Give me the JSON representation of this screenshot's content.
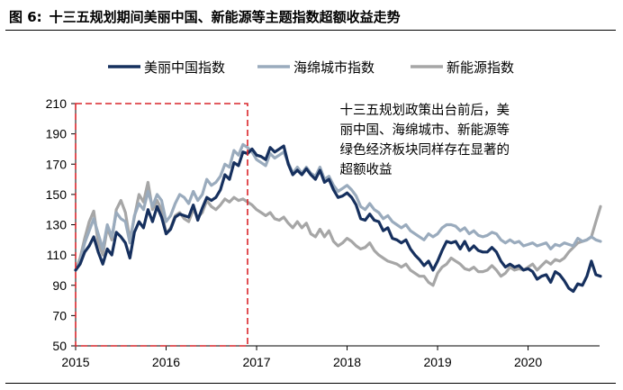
{
  "figure": {
    "label": "图 6:",
    "title": "十三五规划期间美丽中国、新能源等主题指数超额收益走势"
  },
  "chart_data": {
    "type": "line",
    "title": "十三五规划期间美丽中国、新能源等主题指数超额收益走势",
    "xlabel": "",
    "ylabel": "",
    "xlim": [
      2015.0,
      2020.85
    ],
    "ylim": [
      50,
      210
    ],
    "y_ticks": [
      50,
      70,
      90,
      110,
      130,
      150,
      170,
      190,
      210
    ],
    "x_ticks": [
      2015,
      2016,
      2017,
      2018,
      2019,
      2020
    ],
    "x_tick_labels": [
      "2015",
      "2016",
      "2017",
      "2018",
      "2019",
      "2020"
    ],
    "legend_position": "top",
    "highlight_period": {
      "x_start": 2015.0,
      "x_end": 2016.9,
      "y_start": 50,
      "y_end": 210,
      "style": "dashed-red-box"
    },
    "annotation": {
      "lines": [
        "十三五规划政策出台前后，美",
        "丽中国、海绵城市、新能源等",
        "绿色经济板块同样存在显著的",
        "超额收益"
      ],
      "x": 2017.92,
      "y": 203
    },
    "series": [
      {
        "name": "美丽中国指数",
        "color": "#16305e",
        "width": 3.2,
        "x": [
          2015.0,
          2015.05,
          2015.1,
          2015.15,
          2015.2,
          2015.25,
          2015.3,
          2015.35,
          2015.4,
          2015.45,
          2015.5,
          2015.55,
          2015.6,
          2015.65,
          2015.7,
          2015.75,
          2015.8,
          2015.85,
          2015.9,
          2015.95,
          2016.0,
          2016.05,
          2016.1,
          2016.15,
          2016.2,
          2016.25,
          2016.3,
          2016.35,
          2016.4,
          2016.45,
          2016.5,
          2016.55,
          2016.6,
          2016.65,
          2016.7,
          2016.75,
          2016.8,
          2016.85,
          2016.9,
          2016.95,
          2017.0,
          2017.05,
          2017.1,
          2017.15,
          2017.2,
          2017.25,
          2017.3,
          2017.35,
          2017.4,
          2017.45,
          2017.5,
          2017.55,
          2017.6,
          2017.65,
          2017.7,
          2017.75,
          2017.8,
          2017.85,
          2017.9,
          2017.95,
          2018.0,
          2018.05,
          2018.1,
          2018.15,
          2018.2,
          2018.25,
          2018.3,
          2018.35,
          2018.4,
          2018.45,
          2018.5,
          2018.55,
          2018.6,
          2018.65,
          2018.7,
          2018.75,
          2018.8,
          2018.85,
          2018.9,
          2018.95,
          2019.0,
          2019.05,
          2019.1,
          2019.15,
          2019.2,
          2019.25,
          2019.3,
          2019.35,
          2019.4,
          2019.45,
          2019.5,
          2019.55,
          2019.6,
          2019.65,
          2019.7,
          2019.75,
          2019.8,
          2019.85,
          2019.9,
          2019.95,
          2020.0,
          2020.05,
          2020.1,
          2020.15,
          2020.2,
          2020.25,
          2020.3,
          2020.35,
          2020.4,
          2020.45,
          2020.5,
          2020.55,
          2020.6,
          2020.65,
          2020.7,
          2020.75,
          2020.8
        ],
        "values": [
          100,
          104,
          112,
          116,
          122,
          112,
          104,
          114,
          110,
          125,
          122,
          118,
          108,
          125,
          132,
          128,
          140,
          132,
          142,
          135,
          124,
          127,
          135,
          137,
          136,
          135,
          143,
          133,
          141,
          148,
          146,
          148,
          153,
          163,
          160,
          171,
          169,
          178,
          177,
          180,
          176,
          175,
          173,
          181,
          178,
          180,
          182,
          170,
          163,
          166,
          163,
          167,
          163,
          160,
          166,
          158,
          160,
          153,
          148,
          149,
          151,
          148,
          143,
          134,
          133,
          137,
          133,
          132,
          126,
          128,
          121,
          120,
          118,
          120,
          114,
          110,
          107,
          103,
          106,
          100,
          106,
          113,
          119,
          118,
          119,
          114,
          119,
          113,
          116,
          113,
          112,
          112,
          115,
          112,
          106,
          102,
          104,
          102,
          103,
          100,
          101,
          99,
          94,
          96,
          97,
          92,
          99,
          97,
          93,
          88,
          86,
          91,
          90,
          96,
          106,
          97,
          96
        ]
      },
      {
        "name": "海绵城市指数",
        "color": "#9aabbd",
        "width": 3.2,
        "x": [
          2015.0,
          2015.05,
          2015.1,
          2015.15,
          2015.2,
          2015.25,
          2015.3,
          2015.35,
          2015.4,
          2015.45,
          2015.5,
          2015.55,
          2015.6,
          2015.65,
          2015.7,
          2015.75,
          2015.8,
          2015.85,
          2015.9,
          2015.95,
          2016.0,
          2016.05,
          2016.1,
          2016.15,
          2016.2,
          2016.25,
          2016.3,
          2016.35,
          2016.4,
          2016.45,
          2016.5,
          2016.55,
          2016.6,
          2016.65,
          2016.7,
          2016.75,
          2016.8,
          2016.85,
          2016.9,
          2016.95,
          2017.0,
          2017.05,
          2017.1,
          2017.15,
          2017.2,
          2017.25,
          2017.3,
          2017.35,
          2017.4,
          2017.45,
          2017.5,
          2017.55,
          2017.6,
          2017.65,
          2017.7,
          2017.75,
          2017.8,
          2017.85,
          2017.9,
          2017.95,
          2018.0,
          2018.05,
          2018.1,
          2018.15,
          2018.2,
          2018.25,
          2018.3,
          2018.35,
          2018.4,
          2018.45,
          2018.5,
          2018.55,
          2018.6,
          2018.65,
          2018.7,
          2018.75,
          2018.8,
          2018.85,
          2018.9,
          2018.95,
          2019.0,
          2019.05,
          2019.1,
          2019.15,
          2019.2,
          2019.25,
          2019.3,
          2019.35,
          2019.4,
          2019.45,
          2019.5,
          2019.55,
          2019.6,
          2019.65,
          2019.7,
          2019.75,
          2019.8,
          2019.85,
          2019.9,
          2019.95,
          2020.0,
          2020.05,
          2020.1,
          2020.15,
          2020.2,
          2020.25,
          2020.3,
          2020.35,
          2020.4,
          2020.45,
          2020.5,
          2020.55,
          2020.6,
          2020.65,
          2020.7,
          2020.75,
          2020.8
        ],
        "values": [
          100,
          106,
          118,
          126,
          134,
          124,
          114,
          130,
          122,
          138,
          134,
          132,
          118,
          136,
          144,
          140,
          152,
          142,
          150,
          146,
          132,
          136,
          144,
          150,
          148,
          144,
          152,
          146,
          150,
          160,
          156,
          158,
          162,
          170,
          168,
          179,
          176,
          183,
          181,
          178,
          173,
          171,
          169,
          177,
          174,
          176,
          178,
          171,
          164,
          168,
          164,
          168,
          164,
          162,
          168,
          160,
          162,
          156,
          152,
          154,
          156,
          153,
          149,
          142,
          140,
          144,
          140,
          138,
          134,
          136,
          132,
          130,
          128,
          130,
          126,
          124,
          122,
          120,
          124,
          122,
          124,
          128,
          130,
          130,
          129,
          126,
          128,
          124,
          126,
          123,
          122,
          123,
          125,
          124,
          120,
          118,
          120,
          118,
          119,
          116,
          117,
          118,
          116,
          117,
          118,
          114,
          117,
          116,
          118,
          117,
          116,
          121,
          119,
          120,
          122,
          120,
          119
        ]
      },
      {
        "name": "新能源指数",
        "color": "#a6a6a6",
        "width": 3.2,
        "x": [
          2015.0,
          2015.05,
          2015.1,
          2015.15,
          2015.2,
          2015.25,
          2015.3,
          2015.35,
          2015.4,
          2015.45,
          2015.5,
          2015.55,
          2015.6,
          2015.65,
          2015.7,
          2015.75,
          2015.8,
          2015.85,
          2015.9,
          2015.95,
          2016.0,
          2016.05,
          2016.1,
          2016.15,
          2016.2,
          2016.25,
          2016.3,
          2016.35,
          2016.4,
          2016.45,
          2016.5,
          2016.55,
          2016.6,
          2016.65,
          2016.7,
          2016.75,
          2016.8,
          2016.85,
          2016.9,
          2016.95,
          2017.0,
          2017.05,
          2017.1,
          2017.15,
          2017.2,
          2017.25,
          2017.3,
          2017.35,
          2017.4,
          2017.45,
          2017.5,
          2017.55,
          2017.6,
          2017.65,
          2017.7,
          2017.75,
          2017.8,
          2017.85,
          2017.9,
          2017.95,
          2018.0,
          2018.05,
          2018.1,
          2018.15,
          2018.2,
          2018.25,
          2018.3,
          2018.35,
          2018.4,
          2018.45,
          2018.5,
          2018.55,
          2018.6,
          2018.65,
          2018.7,
          2018.75,
          2018.8,
          2018.85,
          2018.9,
          2018.95,
          2019.0,
          2019.05,
          2019.1,
          2019.15,
          2019.2,
          2019.25,
          2019.3,
          2019.35,
          2019.4,
          2019.45,
          2019.5,
          2019.55,
          2019.6,
          2019.65,
          2019.7,
          2019.75,
          2019.8,
          2019.85,
          2019.9,
          2019.95,
          2020.0,
          2020.05,
          2020.1,
          2020.15,
          2020.2,
          2020.25,
          2020.3,
          2020.35,
          2020.4,
          2020.45,
          2020.5,
          2020.55,
          2020.6,
          2020.65,
          2020.7,
          2020.75,
          2020.8
        ],
        "values": [
          100,
          108,
          121,
          132,
          139,
          118,
          110,
          128,
          120,
          140,
          146,
          138,
          120,
          135,
          150,
          145,
          158,
          140,
          146,
          140,
          124,
          128,
          136,
          138,
          134,
          132,
          140,
          135,
          138,
          146,
          142,
          140,
          143,
          147,
          145,
          148,
          146,
          147,
          145,
          143,
          140,
          138,
          136,
          138,
          134,
          133,
          135,
          131,
          128,
          132,
          128,
          131,
          124,
          122,
          127,
          122,
          126,
          119,
          116,
          118,
          121,
          119,
          116,
          114,
          115,
          118,
          113,
          110,
          108,
          106,
          105,
          104,
          102,
          104,
          100,
          98,
          96,
          96,
          92,
          90,
          98,
          102,
          104,
          108,
          106,
          104,
          101,
          100,
          102,
          99,
          99,
          100,
          103,
          100,
          96,
          98,
          102,
          100,
          101,
          100,
          102,
          104,
          100,
          103,
          106,
          104,
          107,
          106,
          108,
          112,
          115,
          118,
          119,
          120,
          122,
          132,
          142
        ]
      }
    ]
  }
}
